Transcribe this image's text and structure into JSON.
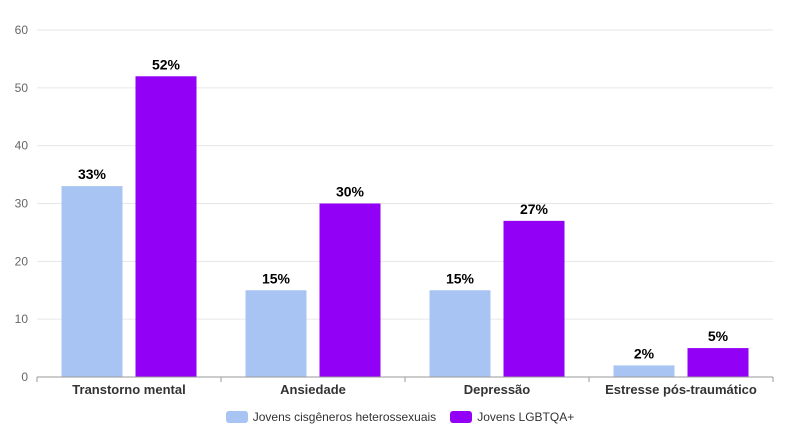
{
  "chart_data": {
    "type": "bar",
    "title": "",
    "xlabel": "",
    "ylabel": "",
    "categories": [
      "Transtorno mental",
      "Ansiedade",
      "Depressão",
      "Estresse pós-traumático"
    ],
    "series": [
      {
        "name": "Jovens cisgêneros heterossexuais",
        "color": "#a7c4f2",
        "values": [
          33,
          15,
          15,
          2
        ],
        "labels": [
          "33%",
          "15%",
          "15%",
          "2%"
        ]
      },
      {
        "name": "Jovens LGBTQA+",
        "color": "#9200f5",
        "values": [
          52,
          30,
          27,
          5
        ],
        "labels": [
          "52%",
          "30%",
          "27%",
          "5%"
        ]
      }
    ],
    "ylim": [
      0,
      60
    ],
    "yticks": [
      0,
      10,
      20,
      30,
      40,
      50,
      60
    ],
    "grid": true,
    "legend_position": "bottom-center"
  }
}
